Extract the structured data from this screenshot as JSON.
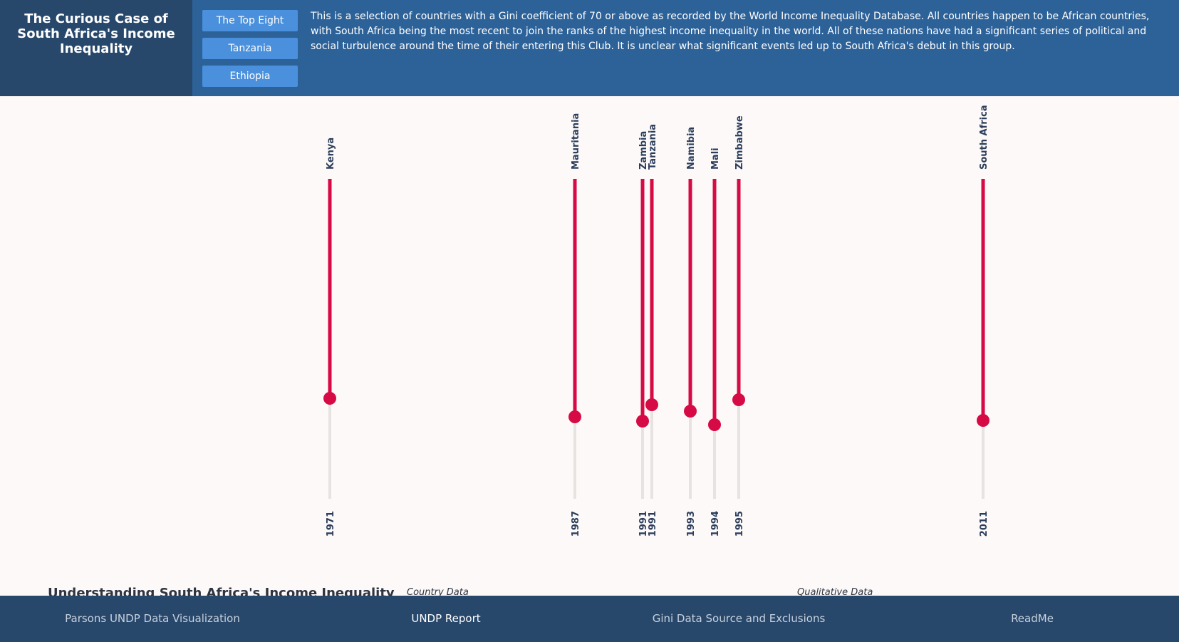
{
  "header": {
    "title": "The Curious Case of South Africa's Income Inequality",
    "buttons": [
      "The Top Eight",
      "Tanzania",
      "Ethiopia"
    ],
    "intro": "This is a selection of countries with a Gini coefficient of 70 or above as recorded by the World Income Inequality Database. All countries happen to be African countries, with South Africa being the most recent to join the ranks of the highest income inequality in the world. All of these nations have had a significant series of political and social turbulence around the time of their entering this Club. It is unclear what significant events led up to South Africa's debut in this group."
  },
  "chart_data": {
    "type": "scatter",
    "title": "",
    "xlabel": "",
    "ylabel": "",
    "points": [
      {
        "country": "Kenya",
        "year": "1971"
      },
      {
        "country": "Mauritania",
        "year": "1987"
      },
      {
        "country": "Zambia",
        "year": "1991"
      },
      {
        "country": "Tanzania",
        "year": "1991"
      },
      {
        "country": "Namibia",
        "year": "1993"
      },
      {
        "country": "Mali",
        "year": "1994"
      },
      {
        "country": "Zimbabwe",
        "year": "1995"
      },
      {
        "country": "South Africa",
        "year": "2011"
      }
    ],
    "colors": {
      "highlight": "#d60b45",
      "track": "#e6e3e1",
      "label": "#2c3e5c"
    }
  },
  "sections": {
    "main_heading": "Understanding South Africa's Income Inequality",
    "country_data": "Country Data",
    "qualitative_data": "Qualitative Data"
  },
  "footer": {
    "links": [
      "Parsons UNDP Data Visualization",
      "UNDP Report",
      "Gini Data Source and Exclusions",
      "ReadMe"
    ]
  }
}
